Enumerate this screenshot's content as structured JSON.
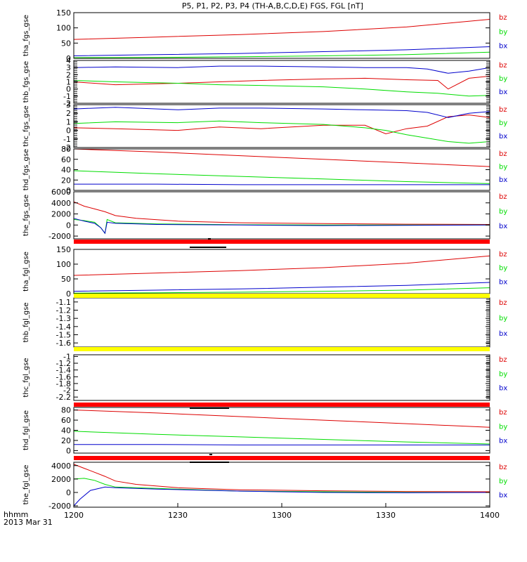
{
  "title": "P5, P1, P2, P3, P4 (TH-A,B,C,D,E) FGS, FGL [nT]",
  "time_axis": {
    "format_label": "hhmm",
    "date_label": "2013 Mar 31",
    "range": [
      1200,
      1400
    ],
    "ticks": [
      "1200",
      "1230",
      "1300",
      "1330",
      "1400"
    ]
  },
  "colors": {
    "bz": "#dd0000",
    "by": "#00dd00",
    "bx": "#0000cc",
    "flag_red": "#ff0000",
    "flag_yellow": "#ffff00",
    "bar": "#000000"
  },
  "chart_data": [
    {
      "type": "line",
      "name": "tha_fgs_gse",
      "ylim": [
        0,
        150
      ],
      "yticks": [
        0,
        50,
        100,
        150
      ],
      "legend": [
        "bz",
        "by",
        "bx"
      ],
      "series": [
        {
          "name": "bz",
          "x": [
            0,
            40,
            80,
            120,
            160,
            200
          ],
          "y": [
            62,
            70,
            78,
            88,
            103,
            128
          ]
        },
        {
          "name": "by",
          "x": [
            0,
            40,
            80,
            120,
            160,
            200
          ],
          "y": [
            2,
            3,
            5,
            8,
            12,
            20
          ]
        },
        {
          "name": "bx",
          "x": [
            0,
            40,
            80,
            120,
            160,
            200
          ],
          "y": [
            8,
            12,
            16,
            22,
            28,
            38
          ]
        }
      ]
    },
    {
      "type": "line",
      "name": "thb_fgs_gse",
      "ylim": [
        -2,
        4
      ],
      "yticks": [
        -2,
        -1,
        0,
        1,
        2,
        3,
        4
      ],
      "legend": [
        "bz",
        "by",
        "bx"
      ],
      "series": [
        {
          "name": "bz",
          "x": [
            0,
            20,
            50,
            70,
            90,
            120,
            140,
            160,
            175,
            180,
            190,
            200
          ],
          "y": [
            1.0,
            0.6,
            0.8,
            1.0,
            1.2,
            1.4,
            1.5,
            1.3,
            1.2,
            0.0,
            1.5,
            1.8
          ]
        },
        {
          "name": "by",
          "x": [
            0,
            20,
            50,
            70,
            90,
            120,
            140,
            160,
            175,
            190,
            200
          ],
          "y": [
            1.2,
            1.0,
            0.8,
            0.6,
            0.5,
            0.3,
            0.0,
            -0.4,
            -0.6,
            -1.0,
            -0.9
          ]
        },
        {
          "name": "bx",
          "x": [
            0,
            20,
            50,
            70,
            90,
            120,
            140,
            160,
            170,
            180,
            190,
            200
          ],
          "y": [
            3.0,
            3.1,
            3.0,
            3.2,
            3.2,
            3.1,
            3.0,
            3.0,
            2.8,
            2.2,
            2.5,
            3.0
          ]
        }
      ]
    },
    {
      "type": "line",
      "name": "thc_fgs_gse",
      "ylim": [
        -2,
        3
      ],
      "yticks": [
        -2,
        -1,
        0,
        1,
        2,
        3
      ],
      "legend": [
        "bz",
        "by",
        "bx"
      ],
      "series": [
        {
          "name": "bz",
          "x": [
            0,
            20,
            50,
            70,
            90,
            120,
            140,
            150,
            160,
            170,
            180,
            190,
            200
          ],
          "y": [
            0.3,
            0.2,
            0.0,
            0.4,
            0.2,
            0.6,
            0.6,
            -0.4,
            0.2,
            0.5,
            1.6,
            1.8,
            1.5
          ]
        },
        {
          "name": "by",
          "x": [
            0,
            20,
            50,
            70,
            90,
            120,
            140,
            150,
            160,
            170,
            180,
            190,
            200
          ],
          "y": [
            0.8,
            1.0,
            0.9,
            1.1,
            0.9,
            0.7,
            0.3,
            0.0,
            -0.5,
            -0.9,
            -1.3,
            -1.5,
            -1.3
          ]
        },
        {
          "name": "bx",
          "x": [
            0,
            20,
            50,
            70,
            90,
            120,
            140,
            160,
            170,
            180,
            190,
            200
          ],
          "y": [
            2.5,
            2.7,
            2.4,
            2.6,
            2.6,
            2.5,
            2.4,
            2.3,
            2.1,
            1.5,
            2.0,
            2.2
          ]
        }
      ]
    },
    {
      "type": "line",
      "name": "thd_fgs_gse",
      "ylim": [
        0,
        80
      ],
      "yticks": [
        0,
        20,
        40,
        60,
        80
      ],
      "legend": [
        "bz",
        "by",
        "bx"
      ],
      "series": [
        {
          "name": "bz",
          "x": [
            0,
            40,
            80,
            120,
            160,
            200
          ],
          "y": [
            80,
            74,
            67,
            60,
            53,
            46
          ]
        },
        {
          "name": "by",
          "x": [
            0,
            40,
            80,
            120,
            160,
            200
          ],
          "y": [
            38,
            32,
            27,
            22,
            17,
            13
          ]
        },
        {
          "name": "bx",
          "x": [
            0,
            40,
            80,
            120,
            160,
            200
          ],
          "y": [
            12,
            12,
            11,
            11,
            11,
            11
          ]
        }
      ]
    },
    {
      "type": "line",
      "name": "the_fgs_gse",
      "ylim": [
        -2500,
        6000
      ],
      "yticks": [
        -2000,
        0,
        2000,
        4000,
        6000
      ],
      "legend": [
        "bz",
        "by",
        "bx"
      ],
      "series": [
        {
          "name": "bz",
          "x": [
            0,
            5,
            10,
            15,
            20,
            30,
            50,
            80,
            120,
            160,
            200
          ],
          "y": [
            4200,
            3400,
            2900,
            2400,
            1700,
            1200,
            700,
            400,
            250,
            150,
            100
          ]
        },
        {
          "name": "by",
          "x": [
            0,
            5,
            10,
            13,
            15,
            16,
            20,
            40,
            80,
            120,
            160,
            200
          ],
          "y": [
            1000,
            800,
            500,
            -500,
            -1500,
            1000,
            400,
            200,
            50,
            0,
            0,
            0
          ]
        },
        {
          "name": "bx",
          "x": [
            0,
            5,
            10,
            13,
            15,
            16,
            20,
            40,
            80,
            120,
            160,
            200
          ],
          "y": [
            1200,
            700,
            300,
            -500,
            -1500,
            500,
            300,
            100,
            0,
            -100,
            -50,
            0
          ]
        }
      ]
    },
    {
      "type": "line",
      "name": "tha_fgl_gse",
      "ylim": [
        0,
        150
      ],
      "yticks": [
        0,
        50,
        100,
        150
      ],
      "legend": [
        "bz",
        "by",
        "bx"
      ],
      "series": [
        {
          "name": "bz",
          "x": [
            0,
            40,
            80,
            120,
            160,
            200
          ],
          "y": [
            62,
            70,
            78,
            88,
            103,
            128
          ]
        },
        {
          "name": "by",
          "x": [
            0,
            40,
            80,
            120,
            160,
            200
          ],
          "y": [
            2,
            3,
            5,
            8,
            12,
            20
          ]
        },
        {
          "name": "bx",
          "x": [
            0,
            40,
            80,
            120,
            160,
            200
          ],
          "y": [
            8,
            12,
            16,
            22,
            28,
            38
          ]
        }
      ]
    },
    {
      "type": "line",
      "name": "thb_fgl_gse",
      "ylim": [
        -1.65,
        -1.05
      ],
      "yticks": [
        -1.6,
        -1.5,
        -1.4,
        -1.3,
        -1.2,
        -1.1
      ],
      "legend": [
        "bz",
        "by",
        "bx"
      ],
      "series": []
    },
    {
      "type": "line",
      "name": "thc_fgl_gse",
      "ylim": [
        -2.3,
        -0.95
      ],
      "yticks": [
        -2.2,
        -2.0,
        -1.8,
        -1.6,
        -1.4,
        -1.2,
        -1.0
      ],
      "legend": [
        "bz",
        "by",
        "bx"
      ],
      "series": []
    },
    {
      "type": "line",
      "name": "thd_fgl_gse",
      "ylim": [
        -5,
        85
      ],
      "yticks": [
        0,
        20,
        40,
        60,
        80
      ],
      "legend": [
        "bz",
        "by",
        "bx"
      ],
      "series": [
        {
          "name": "bz",
          "x": [
            0,
            40,
            80,
            120,
            160,
            200
          ],
          "y": [
            80,
            74,
            67,
            60,
            53,
            46
          ]
        },
        {
          "name": "by",
          "x": [
            0,
            40,
            80,
            120,
            160,
            200
          ],
          "y": [
            38,
            32,
            27,
            22,
            17,
            13
          ]
        },
        {
          "name": "bx",
          "x": [
            0,
            40,
            80,
            120,
            160,
            200
          ],
          "y": [
            12,
            12,
            11,
            11,
            11,
            11
          ]
        }
      ]
    },
    {
      "type": "line",
      "name": "the_fgl_gse",
      "ylim": [
        -2200,
        4500
      ],
      "yticks": [
        -2000,
        0,
        2000,
        4000
      ],
      "legend": [
        "bz",
        "by",
        "bx"
      ],
      "series": [
        {
          "name": "bz",
          "x": [
            0,
            5,
            10,
            15,
            20,
            30,
            50,
            80,
            120,
            160,
            200
          ],
          "y": [
            4200,
            3600,
            3000,
            2400,
            1700,
            1200,
            700,
            400,
            250,
            150,
            100
          ]
        },
        {
          "name": "by",
          "x": [
            0,
            5,
            10,
            15,
            20,
            40,
            80,
            120,
            160,
            200
          ],
          "y": [
            2000,
            2100,
            1800,
            1200,
            800,
            600,
            200,
            100,
            0,
            0
          ]
        },
        {
          "name": "bx",
          "x": [
            0,
            3,
            8,
            15,
            20,
            40,
            80,
            120,
            160,
            200
          ],
          "y": [
            -2000,
            -1000,
            300,
            800,
            700,
            500,
            200,
            0,
            -50,
            0
          ]
        }
      ]
    }
  ]
}
